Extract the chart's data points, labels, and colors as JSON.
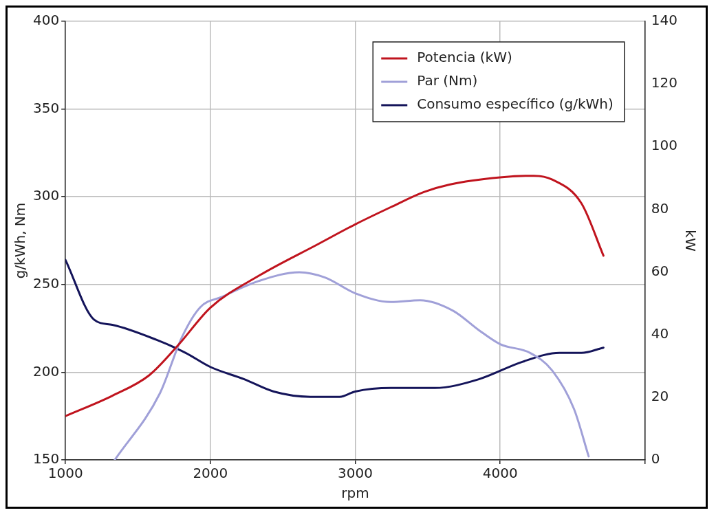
{
  "chart_data": {
    "type": "line",
    "xlabel": "rpm",
    "ylabel": "g/kWh, Nm",
    "y2label": "kW",
    "xlim": [
      1000,
      5000
    ],
    "xticks": [
      1000,
      2000,
      3000,
      4000,
      {
        "value": 5000,
        "label": null
      }
    ],
    "ylim": [
      150,
      400
    ],
    "yticks": [
      150,
      200,
      250,
      300,
      350,
      400
    ],
    "y2lim": [
      0,
      140
    ],
    "y2ticks": [
      0,
      20,
      40,
      60,
      80,
      100,
      120,
      140
    ],
    "grid": true,
    "legend": "top right",
    "marker": "none",
    "line_style": "solid",
    "series": [
      {
        "name": "Potencia (kW)",
        "color": "#c0141e",
        "axis": "y2",
        "x": [
          1000,
          1324,
          1577,
          1779,
          2000,
          2335,
          2740,
          3000,
          3246,
          3473,
          3650,
          4000,
          4232,
          4359,
          4561,
          4713
        ],
        "values": [
          14,
          20.5,
          27,
          36.7,
          48.6,
          58.8,
          68.8,
          75.2,
          80.7,
          85.5,
          87.9,
          90.2,
          90.7,
          89.5,
          81.9,
          65.2
        ]
      },
      {
        "name": "Par (Nm)",
        "color": "#a0a0d8",
        "x": [
          1340,
          1652,
          1804,
          1930,
          2082,
          2335,
          2614,
          2791,
          3000,
          3246,
          3448,
          3676,
          3853,
          4000,
          4207,
          4359,
          4510,
          4611
        ],
        "values": [
          150,
          188,
          220,
          237,
          243,
          252,
          257,
          254,
          245,
          240,
          241,
          235,
          224,
          216,
          211,
          201,
          179,
          152
        ]
      },
      {
        "name": "Consumo específico (g/kWh)",
        "color": "#14145a",
        "x": [
          1000,
          1197,
          1324,
          1627,
          1830,
          2000,
          2234,
          2437,
          2690,
          2892,
          3000,
          3246,
          3549,
          3853,
          4156,
          4409,
          4561,
          4713
        ],
        "values": [
          264,
          230,
          227,
          218.5,
          211,
          203,
          196,
          189,
          186,
          186,
          189,
          191,
          191,
          196,
          206,
          211,
          211,
          214
        ]
      }
    ]
  }
}
